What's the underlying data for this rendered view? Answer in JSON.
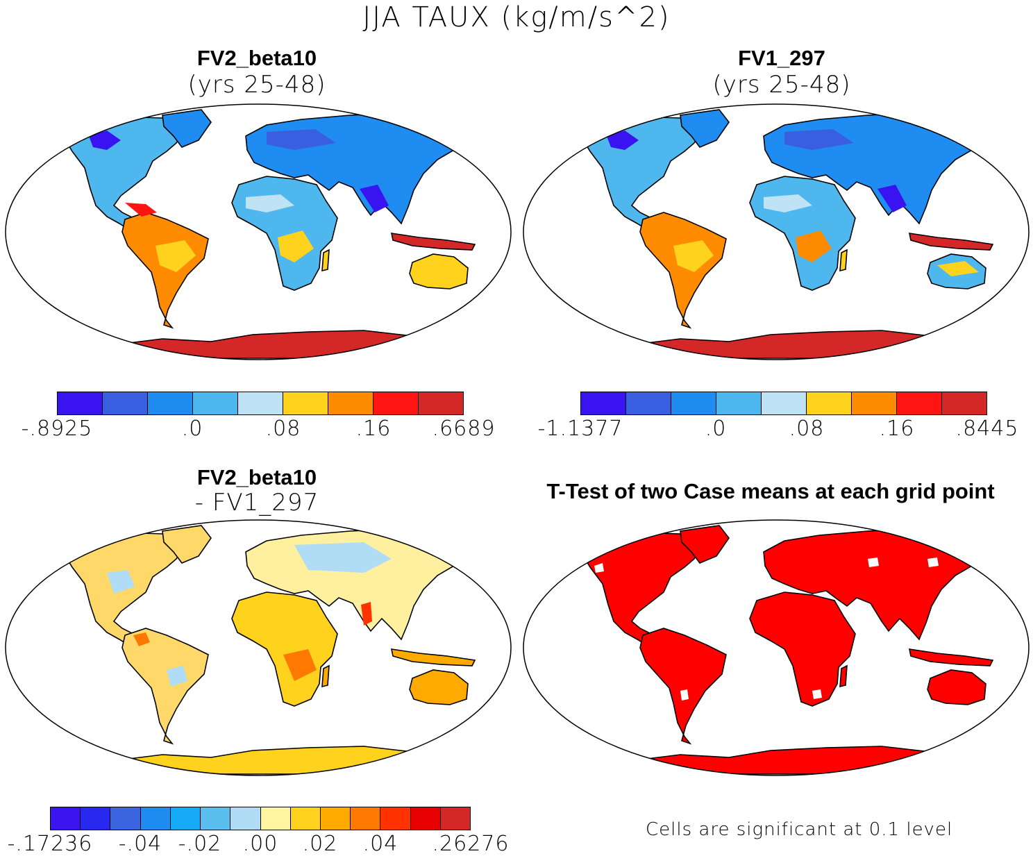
{
  "title": "JJA TAUX (kg/m/s^2)",
  "panels": {
    "fv2": {
      "title": "FV2_beta10",
      "subtitle": "(yrs 25-48)"
    },
    "fv1": {
      "title": "FV1_297",
      "subtitle": "(yrs 25-48)"
    },
    "diff": {
      "title": "FV2_beta10",
      "subtitle": "- FV1_297"
    },
    "ttest": {
      "title": "T-Test of two Case means at each grid point",
      "note": "Cells are significant at 0.1 level"
    }
  },
  "colorbars": {
    "fv2": {
      "colors": [
        "#3a14f0",
        "#3a5ee0",
        "#1e8cf0",
        "#4eb8ee",
        "#bfe2f5",
        "#ffd21e",
        "#ff8c00",
        "#ff1414",
        "#d42828"
      ],
      "labels": [
        "-.8925",
        ".0",
        ".08",
        ".16",
        ".6689"
      ]
    },
    "fv1": {
      "colors": [
        "#3a14f0",
        "#3a5ee0",
        "#1e8cf0",
        "#4eb8ee",
        "#bfe2f5",
        "#ffd21e",
        "#ff8c00",
        "#ff1414",
        "#d42828"
      ],
      "labels": [
        "-1.1377",
        ".0",
        ".08",
        ".16",
        ".8445"
      ]
    },
    "diff": {
      "colors": [
        "#3c14f0",
        "#2828ee",
        "#3a64e0",
        "#1e8cf0",
        "#14aaf5",
        "#5abeee",
        "#b0dcf5",
        "#fff5a0",
        "#ffd21e",
        "#ffaa00",
        "#ff7800",
        "#ff3200",
        "#e60000",
        "#d42828"
      ],
      "labels": [
        "-.17236",
        "-.04",
        "-.02",
        ".00",
        ".02",
        ".04",
        ".26276"
      ]
    }
  },
  "map_colors": {
    "outline": "#000000",
    "land_blue": "#4eb8ee",
    "land_deep": "#3a5ee0",
    "land_yellow": "#ffd21e",
    "land_orange": "#ff8c00",
    "land_red": "#ff1414",
    "diff_land": "#ffd86a",
    "sig_red": "#ff0000"
  }
}
